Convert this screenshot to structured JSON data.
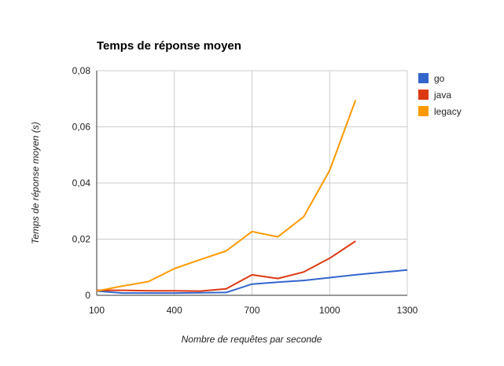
{
  "chart_data": {
    "type": "line",
    "title": "Temps de réponse moyen",
    "xlabel": "Nombre de requêtes par seconde",
    "ylabel": "Temps de réponse moyen (s)",
    "xlim": [
      100,
      1300
    ],
    "ylim": [
      0,
      0.08
    ],
    "x_ticks": [
      "100",
      "400",
      "700",
      "1000",
      "1300"
    ],
    "y_ticks": [
      "0",
      "0,02",
      "0,04",
      "0,06",
      "0,08"
    ],
    "grid": true,
    "legend_position": "right",
    "series": [
      {
        "name": "go",
        "color": "#3366cc",
        "points": [
          [
            100,
            0.0015
          ],
          [
            200,
            0.0008
          ],
          [
            300,
            0.0008
          ],
          [
            400,
            0.0008
          ],
          [
            500,
            0.0009
          ],
          [
            600,
            0.001
          ],
          [
            700,
            0.004
          ],
          [
            800,
            0.0047
          ],
          [
            900,
            0.0053
          ],
          [
            1000,
            0.0063
          ],
          [
            1100,
            0.0073
          ],
          [
            1200,
            0.0082
          ],
          [
            1300,
            0.009
          ]
        ]
      },
      {
        "name": "java",
        "color": "#dc3912",
        "points": [
          [
            100,
            0.0018
          ],
          [
            200,
            0.0018
          ],
          [
            300,
            0.0016
          ],
          [
            400,
            0.0016
          ],
          [
            500,
            0.0015
          ],
          [
            600,
            0.0023
          ],
          [
            700,
            0.0073
          ],
          [
            800,
            0.006
          ],
          [
            900,
            0.0083
          ],
          [
            1000,
            0.0132
          ],
          [
            1100,
            0.0193
          ]
        ]
      },
      {
        "name": "legacy",
        "color": "#ff9900",
        "points": [
          [
            100,
            0.0015
          ],
          [
            200,
            0.0033
          ],
          [
            300,
            0.0049
          ],
          [
            400,
            0.0095
          ],
          [
            500,
            0.0127
          ],
          [
            600,
            0.0158
          ],
          [
            700,
            0.0227
          ],
          [
            800,
            0.0208
          ],
          [
            900,
            0.028
          ],
          [
            1000,
            0.0445
          ],
          [
            1100,
            0.0695
          ]
        ]
      }
    ]
  }
}
